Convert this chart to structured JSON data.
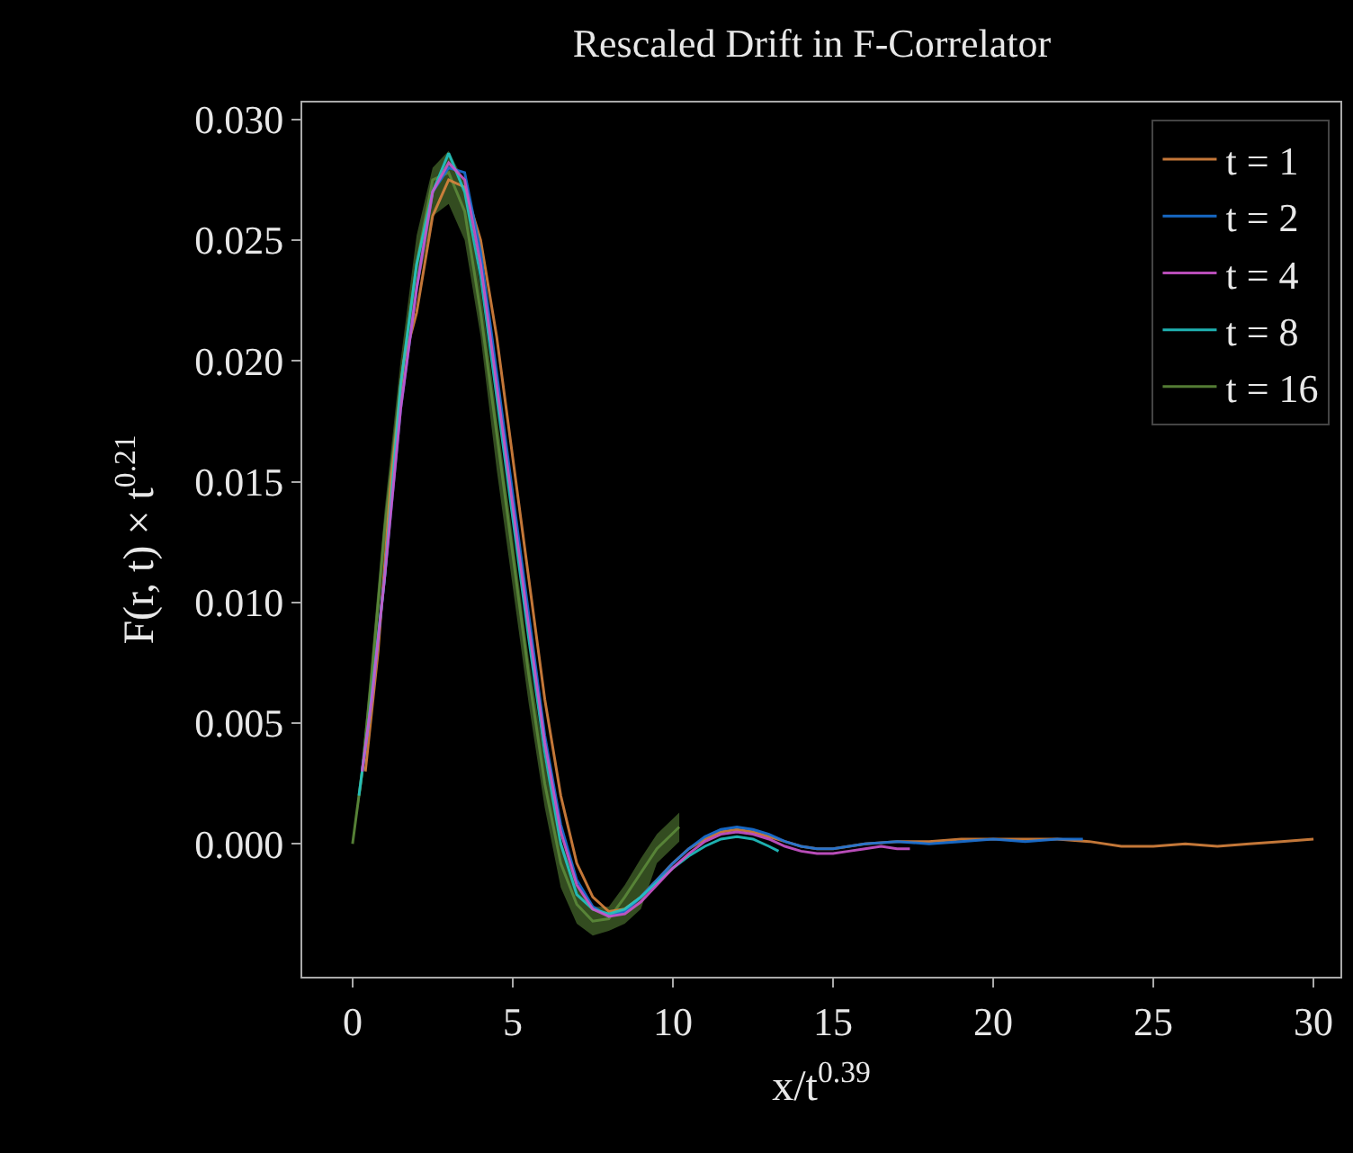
{
  "chart_data": {
    "type": "line",
    "title": "Rescaled Drift in F-Correlator",
    "xlabel": "x/t$^{0.39}$",
    "ylabel": "F(r, t) × t$^{0.21}$",
    "xlim": [
      -1.57,
      30.84
    ],
    "xticks": [
      0,
      5,
      10,
      15,
      20,
      25,
      30
    ],
    "ylim": [
      -0.0055,
      0.0307
    ],
    "yticks": [
      {
        "value": 0,
        "label": "0.000"
      },
      {
        "value": 0.005,
        "label": "0.005"
      },
      {
        "value": 0.01,
        "label": "0.010"
      },
      {
        "value": 0.015,
        "label": "0.015"
      },
      {
        "value": 0.02,
        "label": "0.020"
      },
      {
        "value": 0.025,
        "label": "0.025"
      },
      {
        "value": 0.03,
        "label": "0.030"
      }
    ],
    "grid": false,
    "legend": "top right",
    "marker": "none",
    "line_style": "solid",
    "series": [
      {
        "name": "t = 1",
        "color": "#d9843f",
        "x": [
          0.4,
          0.8,
          1.2,
          1.6,
          2.0,
          2.5,
          3.0,
          3.5,
          4.0,
          4.5,
          5.0,
          5.5,
          6.0,
          6.5,
          7.0,
          7.5,
          8.0,
          8.5,
          9.0,
          9.5,
          10.0,
          10.5,
          11.0,
          11.5,
          12.0,
          12.5,
          13.0,
          13.5,
          14.0,
          14.5,
          15.0,
          16.0,
          17.0,
          18.0,
          19.0,
          20.0,
          21.0,
          22.0,
          23.0,
          24.0,
          25.0,
          26.0,
          27.0,
          28.0,
          29.0,
          30.0
        ],
        "values": [
          0.003,
          0.008,
          0.015,
          0.02,
          0.022,
          0.026,
          0.0275,
          0.0272,
          0.025,
          0.021,
          0.016,
          0.011,
          0.006,
          0.002,
          -0.0008,
          -0.0022,
          -0.0028,
          -0.0027,
          -0.0022,
          -0.0015,
          -0.0008,
          -0.0002,
          0.0002,
          0.0005,
          0.0006,
          0.0005,
          0.0003,
          0.0001,
          -0.0001,
          -0.0002,
          -0.0002,
          0.0,
          0.0001,
          0.0001,
          0.0002,
          0.0002,
          0.0002,
          0.0002,
          0.0001,
          -0.0001,
          -0.0001,
          0.0,
          -0.0001,
          0.0,
          0.0001,
          0.0002
        ]
      },
      {
        "name": "t = 2",
        "color": "#1a73d9",
        "x": [
          0.3,
          0.6,
          1.0,
          1.5,
          2.0,
          2.5,
          3.0,
          3.5,
          4.0,
          4.5,
          5.0,
          5.5,
          6.0,
          6.5,
          7.0,
          7.5,
          8.0,
          8.5,
          9.0,
          9.5,
          10.0,
          10.5,
          11.0,
          11.5,
          12.0,
          12.5,
          13.0,
          13.5,
          14.0,
          14.5,
          15.0,
          16.0,
          17.0,
          18.0,
          19.0,
          20.0,
          21.0,
          22.0,
          22.8
        ],
        "values": [
          0.003,
          0.006,
          0.011,
          0.018,
          0.023,
          0.027,
          0.028,
          0.0278,
          0.0245,
          0.0195,
          0.0145,
          0.0095,
          0.0045,
          0.0008,
          -0.0015,
          -0.0026,
          -0.003,
          -0.0028,
          -0.0022,
          -0.0015,
          -0.0008,
          -0.0002,
          0.0003,
          0.0006,
          0.0007,
          0.0006,
          0.0004,
          0.0001,
          -0.0001,
          -0.0002,
          -0.0002,
          0.0,
          0.0001,
          0.0,
          0.0001,
          0.0002,
          0.0001,
          0.0002,
          0.0002
        ]
      },
      {
        "name": "t = 4",
        "color": "#cc55cc",
        "x": [
          0.3,
          0.6,
          1.0,
          1.5,
          2.0,
          2.5,
          3.0,
          3.5,
          4.0,
          4.5,
          5.0,
          5.5,
          6.0,
          6.5,
          7.0,
          7.5,
          8.0,
          8.5,
          9.0,
          9.5,
          10.0,
          10.5,
          11.0,
          11.5,
          12.0,
          12.5,
          13.0,
          13.5,
          14.0,
          14.5,
          15.0,
          15.5,
          16.0,
          16.5,
          17.0,
          17.4
        ],
        "values": [
          0.003,
          0.006,
          0.011,
          0.018,
          0.023,
          0.027,
          0.0282,
          0.0275,
          0.024,
          0.019,
          0.014,
          0.009,
          0.0042,
          0.0005,
          -0.0017,
          -0.0027,
          -0.003,
          -0.0029,
          -0.0024,
          -0.0017,
          -0.001,
          -0.0004,
          0.0001,
          0.0004,
          0.0005,
          0.0004,
          0.0002,
          -0.0001,
          -0.0003,
          -0.0004,
          -0.0004,
          -0.0003,
          -0.0002,
          -0.0001,
          -0.0002,
          -0.0002
        ]
      },
      {
        "name": "t = 8",
        "color": "#22c4c4",
        "x": [
          0.2,
          0.5,
          1.0,
          1.5,
          2.0,
          2.5,
          3.0,
          3.5,
          4.0,
          4.5,
          5.0,
          5.5,
          6.0,
          6.5,
          7.0,
          7.5,
          8.0,
          8.5,
          9.0,
          9.5,
          10.0,
          10.5,
          11.0,
          11.5,
          12.0,
          12.5,
          13.0,
          13.3
        ],
        "values": [
          0.002,
          0.005,
          0.011,
          0.019,
          0.024,
          0.027,
          0.0286,
          0.027,
          0.0235,
          0.0185,
          0.0135,
          0.0085,
          0.0038,
          0.0,
          -0.0021,
          -0.0027,
          -0.0029,
          -0.0027,
          -0.0022,
          -0.0016,
          -0.001,
          -0.0005,
          -0.0001,
          0.0002,
          0.0003,
          0.0002,
          -0.0001,
          -0.0003
        ]
      },
      {
        "name": "t = 16",
        "color": "#5c8a3a",
        "x": [
          0.0,
          0.3,
          0.6,
          1.0,
          1.5,
          2.0,
          2.5,
          3.0,
          3.5,
          4.0,
          4.5,
          5.0,
          5.5,
          6.0,
          6.5,
          7.0,
          7.5,
          8.0,
          8.5,
          9.0,
          9.5,
          10.2
        ],
        "values": [
          0.0,
          0.003,
          0.007,
          0.013,
          0.019,
          0.024,
          0.0275,
          0.0278,
          0.0262,
          0.022,
          0.017,
          0.012,
          0.007,
          0.0025,
          -0.0008,
          -0.0025,
          -0.0032,
          -0.0031,
          -0.0022,
          -0.0012,
          -0.0002,
          0.0007
        ],
        "lower": [
          0.0,
          0.0025,
          0.0062,
          0.0122,
          0.018,
          0.0228,
          0.026,
          0.0265,
          0.025,
          0.021,
          0.0155,
          0.0106,
          0.0058,
          0.0015,
          -0.0018,
          -0.0033,
          -0.0038,
          -0.0036,
          -0.0033,
          -0.0027,
          -0.0008,
          0.0001
        ],
        "upper": [
          0.0,
          0.0035,
          0.0078,
          0.0138,
          0.02,
          0.0252,
          0.028,
          0.0287,
          0.0274,
          0.023,
          0.0178,
          0.01275,
          0.0077,
          0.0035,
          0.0002,
          -0.0017,
          -0.0026,
          -0.0026,
          -0.0017,
          -0.0006,
          0.0004,
          0.0013
        ]
      }
    ]
  }
}
